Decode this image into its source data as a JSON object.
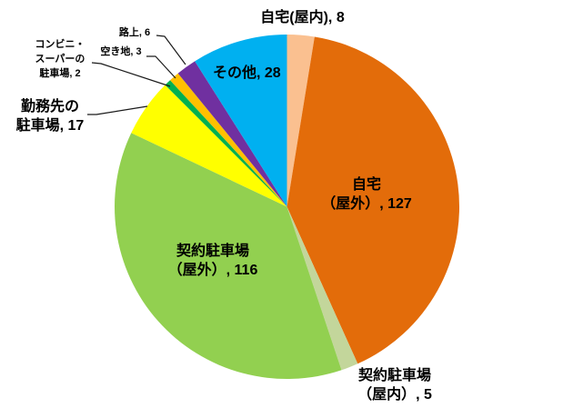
{
  "chart_data": {
    "type": "pie",
    "title": "",
    "legend": "none",
    "slices": [
      {
        "name": "home-indoor",
        "label": "自宅（屋内）",
        "value": 8,
        "color": "#FAC090"
      },
      {
        "name": "home-outdoor",
        "label": "自宅（屋外）",
        "value": 127,
        "color": "#E36C0A"
      },
      {
        "name": "contract-parking-indoor",
        "label": "契約駐車場（屋内）",
        "value": 5,
        "color": "#C3D69B"
      },
      {
        "name": "contract-parking-outdoor",
        "label": "契約駐車場（屋外）",
        "value": 116,
        "color": "#92D050"
      },
      {
        "name": "workplace-parking",
        "label": "勤務先の駐車場",
        "value": 17,
        "color": "#FFFF00"
      },
      {
        "name": "convenience-store-parking",
        "label": "コンビニ・スーパーの駐車場",
        "value": 2,
        "color": "#00B050"
      },
      {
        "name": "vacant-lot",
        "label": "空き地",
        "value": 3,
        "color": "#FFC000"
      },
      {
        "name": "street",
        "label": "路上",
        "value": 6,
        "color": "#7030A0"
      },
      {
        "name": "other",
        "label": "その他",
        "value": 28,
        "color": "#00B0F0"
      }
    ]
  },
  "labels": {
    "home_indoor": {
      "text": "自宅(屋内), 8"
    },
    "other": {
      "text": "その他, 28"
    },
    "home_outdoor": {
      "line1": "自宅",
      "line2": "（屋外）, 127"
    },
    "contract_outdoor": {
      "line1": "契約駐車場",
      "line2": "（屋外）, 116"
    },
    "contract_indoor": {
      "line1": "契約駐車場",
      "line2": "（屋内）, 5"
    },
    "workplace": {
      "line1": "勤務先の",
      "line2": "駐車場, 17"
    },
    "convenience": {
      "line1": "コンビニ・",
      "line2": "スーパーの",
      "line3": "駐車場, 2"
    },
    "vacant_lot": {
      "text": "空き地, 3"
    },
    "street": {
      "text": "路上, 6"
    }
  }
}
